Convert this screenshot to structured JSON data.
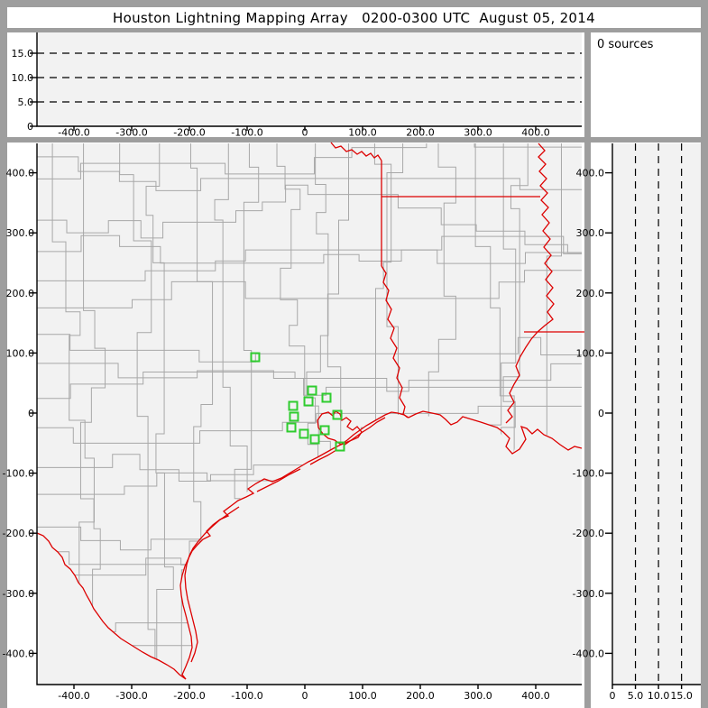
{
  "title": "Houston Lightning Mapping Array   0200-0300 UTC  August 05, 2014",
  "sources_panel": {
    "label": "0 sources"
  },
  "colors": {
    "frame_gray": "#9e9e9e",
    "panel_white": "#ffffff",
    "plot_bg": "#f2f2f2",
    "axis_black": "#000000",
    "county_gray": "#a8a8a8",
    "state_border_red": "#dd0000",
    "station_green": "#2fcc2f",
    "dashed_line": "#000000"
  },
  "axes": {
    "km_ticks": {
      "values": [
        -400,
        -300,
        -200,
        -100,
        0,
        100,
        200,
        300,
        400
      ],
      "labels": [
        "-400.0",
        "-300.0",
        "-200.0",
        "-100.0",
        "0",
        "100.0",
        "200.0",
        "300.0",
        "400.0"
      ]
    },
    "alt_ticks": {
      "values": [
        0,
        5,
        10,
        15
      ],
      "labels": [
        "0",
        "5.0",
        "10.0",
        "15.0"
      ],
      "dashed_values": [
        5,
        10,
        15
      ]
    }
  },
  "chart_data": [
    {
      "panel": "altitude-vs-east-west",
      "type": "scatter",
      "x_range_km": [
        -464,
        480
      ],
      "y_range_km": [
        0,
        19.3
      ],
      "x_tick_labels": [
        "-400.0",
        "-300.0",
        "-200.0",
        "-100.0",
        "0",
        "100.0",
        "200.0",
        "300.0",
        "400.0"
      ],
      "y_tick_labels": [
        "0",
        "5.0",
        "10.0",
        "15.0"
      ],
      "dashed_gridlines_y_km": [
        5,
        10,
        15
      ],
      "points": [],
      "source_count": 0
    },
    {
      "panel": "plan-view-map",
      "type": "scatter",
      "x_range_km": [
        -464,
        480
      ],
      "y_range_km": [
        -450,
        450
      ],
      "x_tick_labels": [
        "-400.0",
        "-300.0",
        "-200.0",
        "-100.0",
        "0",
        "100.0",
        "200.0",
        "300.0",
        "400.0"
      ],
      "y_tick_labels": [
        "400.0",
        "300.0",
        "200.0",
        "100.0",
        "0",
        "-100.0",
        "-200.0",
        "-300.0",
        "-400.0"
      ],
      "lightning_points": [],
      "stations_km": [
        [
          -86,
          93
        ],
        [
          12.5,
          37.5
        ],
        [
          37.5,
          25.5
        ],
        [
          6.3,
          19.5
        ],
        [
          -20.3,
          12
        ],
        [
          56.3,
          -3
        ],
        [
          -18.8,
          -6
        ],
        [
          -23.4,
          -24
        ],
        [
          34.4,
          -28.5
        ],
        [
          -1.6,
          -34.5
        ],
        [
          17.2,
          -43.5
        ],
        [
          60.9,
          -55.6
        ]
      ]
    },
    {
      "panel": "altitude-vs-north-south",
      "type": "scatter",
      "x_range_km": [
        0,
        19.2
      ],
      "y_range_km": [
        -450,
        450
      ],
      "x_tick_labels": [
        "0",
        "5.0",
        "10.0",
        "15.0"
      ],
      "y_tick_labels": [
        "400.0",
        "300.0",
        "200.0",
        "100.0",
        "0",
        "-100.0",
        "-200.0",
        "-300.0",
        "-400.0"
      ],
      "dashed_gridlines_x_km": [
        5,
        10,
        15
      ],
      "points": [],
      "source_count": 0
    }
  ],
  "map_geo": {
    "coord_space": "screen_px",
    "red_river": [
      [
        367,
        158
      ],
      [
        372,
        164
      ],
      [
        378,
        162
      ],
      [
        384,
        168
      ],
      [
        390,
        166
      ],
      [
        396,
        171
      ],
      [
        401,
        168
      ],
      [
        406,
        173
      ],
      [
        411,
        170
      ],
      [
        415,
        175
      ],
      [
        419,
        172
      ],
      [
        423,
        178
      ]
    ],
    "txar_vertical": [
      [
        423,
        178
      ],
      [
        423,
        295
      ]
    ],
    "arla_horizontal": [
      [
        423,
        218
      ],
      [
        599,
        218
      ]
    ],
    "msla_horizontal": [
      [
        581,
        368
      ],
      [
        648,
        368
      ]
    ],
    "sabine_river": [
      [
        423,
        295
      ],
      [
        428,
        303
      ],
      [
        425,
        313
      ],
      [
        431,
        322
      ],
      [
        428,
        333
      ],
      [
        434,
        343
      ],
      [
        430,
        354
      ],
      [
        437,
        364
      ],
      [
        433,
        375
      ],
      [
        440,
        386
      ],
      [
        436,
        397
      ],
      [
        443,
        408
      ],
      [
        440,
        419
      ],
      [
        446,
        430
      ],
      [
        443,
        441
      ],
      [
        449,
        451
      ],
      [
        447,
        459
      ],
      [
        452,
        463
      ]
    ],
    "mississippi_river": [
      [
        597,
        159
      ],
      [
        604,
        167
      ],
      [
        597,
        174
      ],
      [
        605,
        182
      ],
      [
        598,
        190
      ],
      [
        606,
        198
      ],
      [
        599,
        206
      ],
      [
        607,
        214
      ],
      [
        600,
        222
      ],
      [
        608,
        230
      ],
      [
        601,
        238
      ],
      [
        609,
        247
      ],
      [
        602,
        256
      ],
      [
        610,
        265
      ],
      [
        603,
        274
      ],
      [
        611,
        283
      ],
      [
        604,
        292
      ],
      [
        612,
        301
      ],
      [
        605,
        310
      ],
      [
        613,
        319
      ],
      [
        606,
        328
      ],
      [
        614,
        337
      ],
      [
        607,
        346
      ],
      [
        613,
        354
      ],
      [
        604,
        361
      ],
      [
        596,
        368
      ],
      [
        589,
        376
      ],
      [
        583,
        385
      ],
      [
        577,
        395
      ],
      [
        572,
        406
      ],
      [
        576,
        416
      ],
      [
        570,
        426
      ],
      [
        565,
        436
      ],
      [
        570,
        446
      ],
      [
        563,
        455
      ],
      [
        568,
        462
      ],
      [
        561,
        469
      ]
    ],
    "coastline": [
      [
        645,
        497
      ],
      [
        637,
        495
      ],
      [
        630,
        499
      ],
      [
        621,
        493
      ],
      [
        612,
        486
      ],
      [
        603,
        482
      ],
      [
        596,
        476
      ],
      [
        590,
        481
      ],
      [
        584,
        475
      ],
      [
        578,
        473
      ],
      [
        583,
        487
      ],
      [
        576,
        498
      ],
      [
        568,
        503
      ],
      [
        561,
        495
      ],
      [
        565,
        486
      ],
      [
        558,
        479
      ],
      [
        551,
        474
      ],
      [
        542,
        471
      ],
      [
        533,
        468
      ],
      [
        523,
        465
      ],
      [
        513,
        462
      ],
      [
        507,
        468
      ],
      [
        500,
        471
      ],
      [
        494,
        465
      ],
      [
        488,
        460
      ],
      [
        479,
        458
      ],
      [
        469,
        456
      ],
      [
        461,
        459
      ],
      [
        453,
        463
      ],
      [
        448,
        460
      ],
      [
        441,
        458
      ],
      [
        434,
        457
      ],
      [
        427,
        460
      ],
      [
        420,
        464
      ],
      [
        413,
        468
      ],
      [
        406,
        472
      ],
      [
        399,
        477
      ],
      [
        392,
        482
      ],
      [
        385,
        488
      ],
      [
        378,
        493
      ],
      [
        370,
        497
      ],
      [
        361,
        502
      ],
      [
        352,
        507
      ],
      [
        342,
        512
      ],
      [
        332,
        518
      ],
      [
        322,
        524
      ],
      [
        312,
        530
      ],
      [
        302,
        534
      ],
      [
        293,
        531
      ],
      [
        284,
        536
      ],
      [
        275,
        542
      ],
      [
        281,
        547
      ],
      [
        273,
        551
      ],
      [
        264,
        555
      ],
      [
        256,
        561
      ],
      [
        248,
        567
      ],
      [
        253,
        572
      ],
      [
        244,
        576
      ],
      [
        236,
        582
      ],
      [
        229,
        589
      ],
      [
        233,
        594
      ],
      [
        225,
        598
      ],
      [
        219,
        604
      ],
      [
        213,
        611
      ],
      [
        209,
        619
      ],
      [
        205,
        628
      ],
      [
        202,
        638
      ],
      [
        200,
        649
      ],
      [
        201,
        660
      ],
      [
        203,
        671
      ],
      [
        206,
        682
      ],
      [
        209,
        694
      ],
      [
        212,
        706
      ],
      [
        213,
        718
      ],
      [
        210,
        729
      ],
      [
        206,
        739
      ],
      [
        202,
        748
      ],
      [
        206,
        753
      ]
    ],
    "galveston_bay": [
      [
        378,
        493
      ],
      [
        371,
        488
      ],
      [
        364,
        486
      ],
      [
        358,
        481
      ],
      [
        353,
        474
      ],
      [
        352,
        466
      ],
      [
        357,
        459
      ],
      [
        364,
        457
      ],
      [
        369,
        461
      ],
      [
        372,
        456
      ],
      [
        377,
        459
      ],
      [
        379,
        466
      ],
      [
        384,
        463
      ],
      [
        389,
        467
      ],
      [
        385,
        473
      ],
      [
        391,
        477
      ],
      [
        396,
        473
      ],
      [
        401,
        479
      ],
      [
        397,
        485
      ],
      [
        390,
        488
      ],
      [
        383,
        491
      ],
      [
        378,
        493
      ]
    ],
    "rio_grande": [
      [
        41,
        591
      ],
      [
        48,
        594
      ],
      [
        54,
        600
      ],
      [
        58,
        607
      ],
      [
        64,
        612
      ],
      [
        69,
        618
      ],
      [
        72,
        626
      ],
      [
        78,
        631
      ],
      [
        83,
        638
      ],
      [
        87,
        646
      ],
      [
        92,
        652
      ],
      [
        96,
        660
      ],
      [
        100,
        667
      ],
      [
        104,
        675
      ],
      [
        109,
        682
      ],
      [
        114,
        689
      ],
      [
        120,
        696
      ],
      [
        127,
        702
      ],
      [
        134,
        708
      ],
      [
        142,
        713
      ],
      [
        150,
        718
      ],
      [
        158,
        723
      ],
      [
        167,
        728
      ],
      [
        176,
        732
      ],
      [
        185,
        737
      ],
      [
        193,
        742
      ],
      [
        199,
        748
      ],
      [
        206,
        753
      ]
    ],
    "barrier_islands": [
      [
        [
          427,
          463
        ],
        [
          418,
          468
        ],
        [
          410,
          474
        ],
        [
          402,
          479
        ],
        [
          395,
          484
        ],
        [
          388,
          489
        ],
        [
          381,
          494
        ]
      ],
      [
        [
          373,
          499
        ],
        [
          363,
          505
        ],
        [
          353,
          510
        ],
        [
          344,
          515
        ]
      ],
      [
        [
          333,
          520
        ],
        [
          321,
          526
        ],
        [
          309,
          533
        ],
        [
          297,
          539
        ],
        [
          285,
          545
        ]
      ],
      [
        [
          265,
          562
        ],
        [
          253,
          570
        ],
        [
          243,
          577
        ],
        [
          234,
          585
        ],
        [
          227,
          592
        ],
        [
          220,
          600
        ],
        [
          214,
          608
        ],
        [
          210,
          616
        ],
        [
          207,
          626
        ],
        [
          205,
          638
        ],
        [
          206,
          652
        ],
        [
          208,
          664
        ],
        [
          211,
          676
        ],
        [
          214,
          688
        ],
        [
          217,
          700
        ],
        [
          219,
          712
        ],
        [
          216,
          724
        ],
        [
          212,
          734
        ]
      ]
    ],
    "land_clip_coast": [
      [
        645,
        498
      ],
      [
        612,
        486
      ],
      [
        596,
        476
      ],
      [
        578,
        473
      ],
      [
        569,
        503
      ],
      [
        551,
        474
      ],
      [
        513,
        462
      ],
      [
        494,
        465
      ],
      [
        461,
        459
      ],
      [
        448,
        460
      ],
      [
        427,
        460
      ],
      [
        406,
        472
      ],
      [
        385,
        488
      ],
      [
        378,
        493
      ],
      [
        361,
        502
      ],
      [
        342,
        512
      ],
      [
        322,
        524
      ],
      [
        302,
        534
      ],
      [
        284,
        536
      ],
      [
        264,
        555
      ],
      [
        248,
        567
      ],
      [
        236,
        582
      ],
      [
        219,
        604
      ],
      [
        209,
        619
      ],
      [
        202,
        638
      ],
      [
        200,
        649
      ],
      [
        203,
        671
      ],
      [
        209,
        694
      ],
      [
        213,
        718
      ],
      [
        206,
        739
      ],
      [
        206,
        753
      ]
    ]
  }
}
